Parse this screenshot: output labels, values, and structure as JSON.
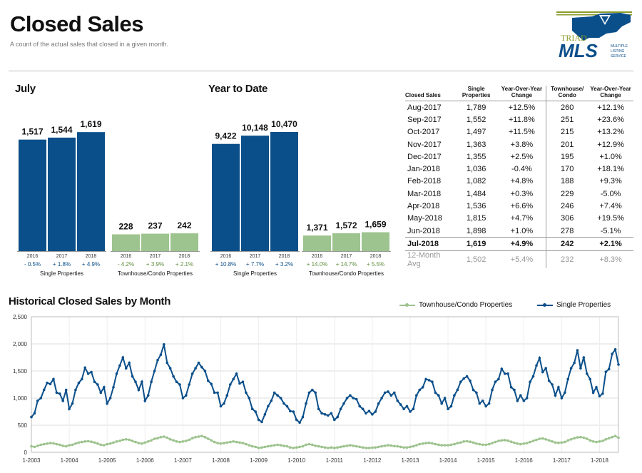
{
  "header": {
    "title": "Closed Sales",
    "subtitle": "A count of the actual sales that closed in a given month."
  },
  "logo": {
    "brand_top": "TRIAD",
    "brand_main": "MLS",
    "tagline_1": "MULTIPLE",
    "tagline_2": "LISTING",
    "tagline_3": "SERVICE"
  },
  "colors": {
    "single": "#0b4f8a",
    "townhouse": "#9dc38e",
    "single_change": "#0b4f8a",
    "townhouse_change": "#5f8f3e"
  },
  "chart_data": [
    {
      "type": "bar",
      "title": "July",
      "groups": [
        {
          "name": "Single Properties",
          "categories": [
            "2016",
            "2017",
            "2018"
          ],
          "values": [
            1517,
            1544,
            1619
          ],
          "value_labels": [
            "1,517",
            "1,544",
            "1,619"
          ],
          "changes": [
            "- 0.5%",
            "+ 1.8%",
            "+ 4.9%"
          ]
        },
        {
          "name": "Townhouse/Condo Properties",
          "categories": [
            "2016",
            "2017",
            "2018"
          ],
          "values": [
            228,
            237,
            242
          ],
          "value_labels": [
            "228",
            "237",
            "242"
          ],
          "changes": [
            "- 4.2%",
            "+ 3.9%",
            "+ 2.1%"
          ]
        }
      ]
    },
    {
      "type": "bar",
      "title": "Year to Date",
      "groups": [
        {
          "name": "Single Properties",
          "categories": [
            "2016",
            "2017",
            "2018"
          ],
          "values": [
            9422,
            10148,
            10470
          ],
          "value_labels": [
            "9,422",
            "10,148",
            "10,470"
          ],
          "changes": [
            "+ 10.8%",
            "+ 7.7%",
            "+ 3.2%"
          ]
        },
        {
          "name": "Townhouse/Condo Properties",
          "categories": [
            "2016",
            "2017",
            "2018"
          ],
          "values": [
            1371,
            1572,
            1659
          ],
          "value_labels": [
            "1,371",
            "1,572",
            "1,659"
          ],
          "changes": [
            "+ 14.0%",
            "+ 14.7%",
            "+ 5.5%"
          ]
        }
      ]
    },
    {
      "type": "table",
      "columns": [
        "Closed Sales",
        "Single Properties",
        "Year-Over-Year Change",
        "Townhouse/ Condo",
        "Year-Over-Year Change"
      ],
      "rows": [
        [
          "Aug-2017",
          "1,789",
          "+12.5%",
          "260",
          "+12.1%"
        ],
        [
          "Sep-2017",
          "1,552",
          "+11.8%",
          "251",
          "+23.6%"
        ],
        [
          "Oct-2017",
          "1,497",
          "+11.5%",
          "215",
          "+13.2%"
        ],
        [
          "Nov-2017",
          "1,363",
          "+3.8%",
          "201",
          "+12.9%"
        ],
        [
          "Dec-2017",
          "1,355",
          "+2.5%",
          "195",
          "+1.0%"
        ],
        [
          "Jan-2018",
          "1,036",
          "-0.4%",
          "170",
          "+18.1%"
        ],
        [
          "Feb-2018",
          "1,082",
          "+4.8%",
          "188",
          "+9.3%"
        ],
        [
          "Mar-2018",
          "1,484",
          "+0.3%",
          "229",
          "-5.0%"
        ],
        [
          "Apr-2018",
          "1,536",
          "+6.6%",
          "246",
          "+7.4%"
        ],
        [
          "May-2018",
          "1,815",
          "+4.7%",
          "306",
          "+19.5%"
        ],
        [
          "Jun-2018",
          "1,898",
          "+1.0%",
          "278",
          "-5.1%"
        ],
        [
          "Jul-2018",
          "1,619",
          "+4.9%",
          "242",
          "+2.1%"
        ]
      ],
      "summary_row": [
        "12-Month Avg",
        "1,502",
        "+5.4%",
        "232",
        "+8.3%"
      ]
    },
    {
      "type": "line",
      "title": "Historical Closed Sales by Month",
      "ylim": [
        0,
        2500
      ],
      "yticks": [
        0,
        500,
        1000,
        1500,
        2000,
        2500
      ],
      "ytick_labels": [
        "0",
        "500",
        "1,000",
        "1,500",
        "2,000",
        "2,500"
      ],
      "xtick_labels": [
        "1-2003",
        "1-2004",
        "1-2005",
        "1-2006",
        "1-2007",
        "1-2008",
        "1-2009",
        "1-2010",
        "1-2011",
        "1-2012",
        "1-2013",
        "1-2014",
        "1-2015",
        "1-2016",
        "1-2017",
        "1-2018"
      ],
      "x_start": "2003-01",
      "x_end": "2018-07",
      "legend_position": "top-right",
      "grid": true,
      "series": [
        {
          "name": "Townhouse/Condo Properties",
          "values": [
            110,
            100,
            120,
            140,
            150,
            160,
            170,
            165,
            150,
            140,
            120,
            110,
            130,
            140,
            160,
            180,
            190,
            200,
            205,
            195,
            180,
            160,
            140,
            130,
            150,
            160,
            180,
            200,
            210,
            230,
            240,
            230,
            210,
            190,
            170,
            160,
            180,
            200,
            220,
            250,
            260,
            280,
            290,
            270,
            240,
            220,
            200,
            190,
            200,
            210,
            230,
            260,
            280,
            290,
            300,
            280,
            250,
            220,
            190,
            170,
            160,
            170,
            180,
            190,
            200,
            190,
            180,
            170,
            150,
            130,
            110,
            100,
            80,
            90,
            100,
            110,
            120,
            130,
            140,
            130,
            120,
            110,
            90,
            80,
            90,
            100,
            110,
            140,
            150,
            140,
            120,
            110,
            100,
            90,
            80,
            90,
            80,
            90,
            100,
            110,
            120,
            130,
            120,
            110,
            100,
            90,
            80,
            80,
            85,
            90,
            100,
            110,
            120,
            130,
            125,
            115,
            110,
            100,
            90,
            90,
            100,
            110,
            130,
            150,
            160,
            170,
            175,
            165,
            150,
            140,
            130,
            130,
            130,
            140,
            150,
            170,
            180,
            200,
            205,
            195,
            180,
            160,
            150,
            140,
            140,
            150,
            170,
            190,
            210,
            220,
            225,
            215,
            195,
            175,
            160,
            150,
            160,
            170,
            190,
            210,
            230,
            250,
            255,
            240,
            220,
            200,
            180,
            175,
            180,
            190,
            220,
            240,
            260,
            275,
            280,
            270,
            250,
            220,
            200,
            190,
            200,
            210,
            240,
            260,
            280,
            300,
            270
          ]
        },
        {
          "name": "Single Properties",
          "values": [
            650,
            720,
            950,
            1000,
            1150,
            1280,
            1260,
            1350,
            1100,
            1080,
            950,
            1150,
            800,
            900,
            1150,
            1280,
            1350,
            1560,
            1450,
            1480,
            1300,
            1250,
            1100,
            1200,
            900,
            1000,
            1200,
            1450,
            1600,
            1750,
            1550,
            1650,
            1400,
            1300,
            1150,
            1300,
            950,
            1050,
            1300,
            1500,
            1700,
            1800,
            1990,
            1650,
            1550,
            1400,
            1300,
            1250,
            1000,
            1050,
            1250,
            1450,
            1550,
            1650,
            1570,
            1500,
            1320,
            1260,
            1100,
            1100,
            850,
            900,
            1050,
            1250,
            1350,
            1450,
            1270,
            1300,
            1100,
            1000,
            800,
            750,
            600,
            560,
            700,
            850,
            950,
            1100,
            1050,
            1000,
            900,
            850,
            760,
            750,
            600,
            550,
            650,
            900,
            1100,
            1150,
            1100,
            800,
            720,
            700,
            680,
            720,
            600,
            650,
            800,
            900,
            1000,
            1050,
            1000,
            980,
            850,
            800,
            720,
            760,
            700,
            750,
            900,
            1000,
            1100,
            1120,
            1050,
            1100,
            950,
            880,
            800,
            850,
            750,
            800,
            1050,
            1150,
            1200,
            1350,
            1330,
            1300,
            1100,
            1050,
            900,
            1000,
            800,
            850,
            1050,
            1150,
            1300,
            1360,
            1400,
            1320,
            1150,
            1100,
            900,
            950,
            850,
            900,
            1150,
            1300,
            1350,
            1540,
            1450,
            1450,
            1200,
            1150,
            950,
            1050,
            950,
            1000,
            1300,
            1400,
            1600,
            1740,
            1480,
            1550,
            1320,
            1250,
            1050,
            1200,
            1000,
            1100,
            1350,
            1550,
            1650,
            1880,
            1550,
            1750,
            1450,
            1350,
            1100,
            1200,
            1036,
            1082,
            1484,
            1536,
            1815,
            1898,
            1619
          ]
        }
      ]
    }
  ]
}
